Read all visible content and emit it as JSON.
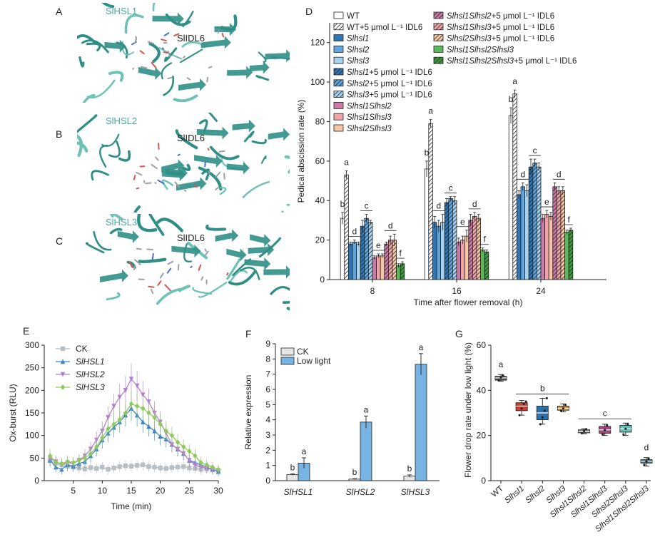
{
  "panels": {
    "A": {
      "letter": "A",
      "receptor": "SlHSL1",
      "ligand": "SlIDL6"
    },
    "B": {
      "letter": "B",
      "receptor": "SlHSL2",
      "ligand": "SlIDL6"
    },
    "C": {
      "letter": "C",
      "receptor": "SlHSL3",
      "ligand": "SlIDL6"
    },
    "D": {
      "letter": "D"
    },
    "E": {
      "letter": "E"
    },
    "F": {
      "letter": "F"
    },
    "G": {
      "letter": "G"
    }
  },
  "colors": {
    "teal": "#2f8f86",
    "tealLight": "#6ec2b7",
    "ligandGrey": "#9aa0a6"
  },
  "chart_data": [
    {
      "id": "D",
      "type": "bar",
      "xlabel": "Time after flower removal (h)",
      "ylabel": "Pedical abscission rate (%)",
      "ylim": [
        0,
        130
      ],
      "yticks": [
        0,
        20,
        40,
        60,
        80,
        100,
        120
      ],
      "categories": [
        "8",
        "16",
        "24"
      ],
      "series": [
        {
          "name": "WT",
          "color": "#ffffff",
          "hatch": false,
          "values": [
            31,
            56,
            83
          ],
          "err": [
            3,
            4,
            4
          ]
        },
        {
          "name": "WT+5 μmol L⁻¹ IDL6",
          "color": "#ffffff",
          "hatch": true,
          "values": [
            53,
            79,
            94
          ],
          "err": [
            2,
            2,
            2
          ]
        },
        {
          "name": "Slhsl1",
          "color": "#2e75b6",
          "hatch": false,
          "values": [
            18,
            29,
            43
          ],
          "err": [
            1,
            3,
            2
          ]
        },
        {
          "name": "Slhsl2",
          "color": "#5ea6dd",
          "hatch": false,
          "values": [
            19,
            27,
            47
          ],
          "err": [
            1,
            3,
            2
          ]
        },
        {
          "name": "Slhsl3",
          "color": "#a8d3f0",
          "hatch": false,
          "values": [
            18,
            29,
            45
          ],
          "err": [
            1,
            4,
            3
          ]
        },
        {
          "name": "Slhsl1+5 μmol L⁻¹ IDL6",
          "color": "#2e75b6",
          "hatch": true,
          "values": [
            27,
            39,
            57
          ],
          "err": [
            3,
            2,
            4
          ]
        },
        {
          "name": "Slhsl2+5 μmol L⁻¹ IDL6",
          "color": "#5ea6dd",
          "hatch": true,
          "values": [
            31,
            41,
            59
          ],
          "err": [
            2,
            1,
            2
          ]
        },
        {
          "name": "Slhsl3+5 μmol L⁻¹ IDL6",
          "color": "#a8d3f0",
          "hatch": true,
          "values": [
            29,
            40,
            57
          ],
          "err": [
            1,
            2,
            2
          ]
        },
        {
          "name": "Slhsl1Slhsl2",
          "color": "#c97aa6",
          "hatch": false,
          "values": [
            11,
            19,
            31
          ],
          "err": [
            1,
            2,
            2
          ]
        },
        {
          "name": "Slhsl1Slhsl3",
          "color": "#f2a3a8",
          "hatch": false,
          "values": [
            12,
            20,
            33
          ],
          "err": [
            1,
            2,
            2
          ]
        },
        {
          "name": "Slhsl2Slhsl3",
          "color": "#f6c7a4",
          "hatch": false,
          "values": [
            12,
            22,
            32
          ],
          "err": [
            1,
            3,
            2
          ]
        },
        {
          "name": "Slhsl1Slhsl2+5 μmol L⁻¹ IDL6",
          "color": "#c97aa6",
          "hatch": true,
          "values": [
            18,
            30,
            47
          ],
          "err": [
            1,
            3,
            2
          ]
        },
        {
          "name": "Slhsl1Slhsl3+5 μmol L⁻¹ IDL6",
          "color": "#f2a3a8",
          "hatch": true,
          "values": [
            20,
            32,
            45
          ],
          "err": [
            2,
            2,
            2
          ]
        },
        {
          "name": "Slhsl2Slhsl3+5 μmol L⁻¹ IDL6",
          "color": "#f6c7a4",
          "hatch": true,
          "values": [
            20,
            31,
            45
          ],
          "err": [
            3,
            2,
            2
          ]
        },
        {
          "name": "Slhsl1Slhsl2Slhsl3",
          "color": "#5cb85c",
          "hatch": false,
          "values": [
            7,
            15,
            24
          ],
          "err": [
            1,
            1,
            1
          ]
        },
        {
          "name": "Slhsl1Slhsl2Slhsl3+5 μmol L⁻¹ IDL6",
          "color": "#3c9a3c",
          "hatch": true,
          "values": [
            8,
            14,
            25
          ],
          "err": [
            1,
            1,
            1
          ]
        }
      ],
      "letters": [
        {
          "cat": 0,
          "groups": [
            {
              "from": 0,
              "to": 0,
              "text": "b"
            },
            {
              "from": 1,
              "to": 1,
              "text": "a"
            },
            {
              "from": 2,
              "to": 4,
              "text": "d"
            },
            {
              "from": 5,
              "to": 7,
              "text": "c"
            },
            {
              "from": 8,
              "to": 10,
              "text": "e"
            },
            {
              "from": 11,
              "to": 13,
              "text": "d"
            },
            {
              "from": 14,
              "to": 15,
              "text": "f"
            }
          ]
        },
        {
          "cat": 1,
          "groups": [
            {
              "from": 0,
              "to": 0,
              "text": "b"
            },
            {
              "from": 1,
              "to": 1,
              "text": "a"
            },
            {
              "from": 2,
              "to": 4,
              "text": "d"
            },
            {
              "from": 5,
              "to": 7,
              "text": "c"
            },
            {
              "from": 8,
              "to": 10,
              "text": "e"
            },
            {
              "from": 11,
              "to": 13,
              "text": "d"
            },
            {
              "from": 14,
              "to": 15,
              "text": "f"
            }
          ]
        },
        {
          "cat": 2,
          "groups": [
            {
              "from": 0,
              "to": 0,
              "text": "b"
            },
            {
              "from": 1,
              "to": 1,
              "text": "a"
            },
            {
              "from": 2,
              "to": 4,
              "text": "d"
            },
            {
              "from": 5,
              "to": 7,
              "text": "c"
            },
            {
              "from": 8,
              "to": 10,
              "text": "e"
            },
            {
              "from": 11,
              "to": 13,
              "text": "d"
            },
            {
              "from": 14,
              "to": 15,
              "text": "f"
            }
          ]
        }
      ]
    },
    {
      "id": "E",
      "type": "line",
      "xlabel": "Time (min)",
      "ylabel": "Ox-burst (RLU)",
      "xlim": [
        0,
        30
      ],
      "ylim": [
        0,
        300
      ],
      "xticks": [
        5,
        10,
        15,
        20,
        25,
        30
      ],
      "yticks": [
        0,
        50,
        100,
        150,
        200,
        250,
        300
      ],
      "x": [
        1,
        2,
        3,
        4,
        5,
        6,
        7,
        8,
        9,
        10,
        11,
        12,
        13,
        14,
        15,
        16,
        17,
        18,
        19,
        20,
        21,
        22,
        23,
        24,
        25,
        26,
        27,
        28,
        29,
        30
      ],
      "series": [
        {
          "name": "CK",
          "color": "#b9bec2",
          "marker": "square",
          "values": [
            45,
            38,
            35,
            32,
            30,
            28,
            26,
            29,
            27,
            30,
            25,
            28,
            31,
            33,
            32,
            34,
            35,
            31,
            30,
            28,
            27,
            29,
            30,
            31,
            28,
            27,
            25,
            26,
            24,
            22
          ]
        },
        {
          "name": "SlHSL1",
          "color": "#3b86c6",
          "marker": "triangle-up",
          "values": [
            45,
            30,
            25,
            35,
            32,
            38,
            42,
            55,
            70,
            90,
            105,
            118,
            130,
            145,
            160,
            145,
            130,
            120,
            110,
            98,
            92,
            80,
            70,
            60,
            45,
            40,
            35,
            30,
            25,
            20
          ]
        },
        {
          "name": "SlHSL2",
          "color": "#b57fcf",
          "marker": "triangle-down",
          "values": [
            50,
            42,
            35,
            40,
            38,
            45,
            55,
            70,
            90,
            110,
            140,
            165,
            185,
            200,
            225,
            210,
            190,
            175,
            150,
            130,
            105,
            80,
            70,
            60,
            45,
            35,
            30,
            28,
            25,
            22
          ]
        },
        {
          "name": "SlHSL3",
          "color": "#8fc95b",
          "marker": "diamond",
          "values": [
            55,
            40,
            38,
            42,
            40,
            45,
            50,
            60,
            75,
            95,
            115,
            125,
            135,
            150,
            170,
            165,
            160,
            150,
            140,
            125,
            110,
            100,
            85,
            75,
            65,
            55,
            40,
            35,
            30,
            25
          ]
        }
      ]
    },
    {
      "id": "F",
      "type": "bar",
      "ylabel": "Relative expression",
      "ylim": [
        0,
        9
      ],
      "yticks": [
        0,
        1,
        2,
        3,
        4,
        5,
        6,
        7,
        8,
        9
      ],
      "categories": [
        "SlHSL1",
        "SlHSL2",
        "SlHSL3"
      ],
      "series": [
        {
          "name": "CK",
          "color": "#e6e6e6",
          "values": [
            0.4,
            0.1,
            0.3
          ],
          "err": [
            0.05,
            0.03,
            0.08
          ],
          "letters": [
            "b",
            "b",
            "b"
          ]
        },
        {
          "name": "Low light",
          "color": "#77b4e3",
          "values": [
            1.15,
            3.85,
            7.65
          ],
          "err": [
            0.35,
            0.4,
            0.7
          ],
          "letters": [
            "a",
            "a",
            "a"
          ]
        }
      ]
    },
    {
      "id": "G",
      "type": "box",
      "ylabel": "Flower drop rate under low light (%)",
      "ylim": [
        0,
        60
      ],
      "yticks": [
        0,
        20,
        40,
        60
      ],
      "categories": [
        "WT",
        "Slhsl1",
        "Slhsl2",
        "Slhsl3",
        "Slhsl1Slhsl2",
        "Slhsl1Slhsl3",
        "Slhsl2Slhsl3",
        "Slhsl1Slhsl2Slhsl3"
      ],
      "boxes": [
        {
          "color": "#555555",
          "min": 44,
          "q1": 44.5,
          "median": 45.5,
          "q3": 46.2,
          "max": 47,
          "pts": [
            44.5,
            45.8,
            46.5
          ]
        },
        {
          "color": "#d33b2c",
          "min": 29,
          "q1": 31,
          "median": 33,
          "q3": 34.5,
          "max": 35.5,
          "pts": [
            29,
            32,
            34,
            35
          ]
        },
        {
          "color": "#2c6fa6",
          "min": 25,
          "q1": 27,
          "median": 30,
          "q3": 33,
          "max": 36.5,
          "pts": [
            25,
            28,
            31,
            36.5
          ]
        },
        {
          "color": "#e29a3c",
          "min": 30.5,
          "q1": 31.2,
          "median": 32,
          "q3": 33,
          "max": 34,
          "pts": [
            31,
            32,
            33.5
          ]
        },
        {
          "color": "#8a8a8a",
          "min": 20.8,
          "q1": 21.2,
          "median": 21.8,
          "q3": 22.5,
          "max": 23,
          "pts": [
            21,
            22,
            22.8
          ]
        },
        {
          "color": "#a8457e",
          "min": 20,
          "q1": 21,
          "median": 22.5,
          "q3": 24,
          "max": 25,
          "pts": [
            20.5,
            22.5,
            24.5
          ]
        },
        {
          "color": "#62c2b5",
          "min": 20,
          "q1": 21.5,
          "median": 23,
          "q3": 24.5,
          "max": 25.5,
          "pts": [
            20.5,
            23,
            25
          ]
        },
        {
          "color": "#3e6f8e",
          "min": 6.5,
          "q1": 7.8,
          "median": 8.6,
          "q3": 9.3,
          "max": 10.2,
          "pts": [
            7,
            8.5,
            9.8
          ]
        }
      ],
      "letters": [
        {
          "from": 0,
          "to": 0,
          "text": "a"
        },
        {
          "from": 1,
          "to": 3,
          "text": "b"
        },
        {
          "from": 4,
          "to": 6,
          "text": "c"
        },
        {
          "from": 7,
          "to": 7,
          "text": "d"
        }
      ]
    }
  ]
}
